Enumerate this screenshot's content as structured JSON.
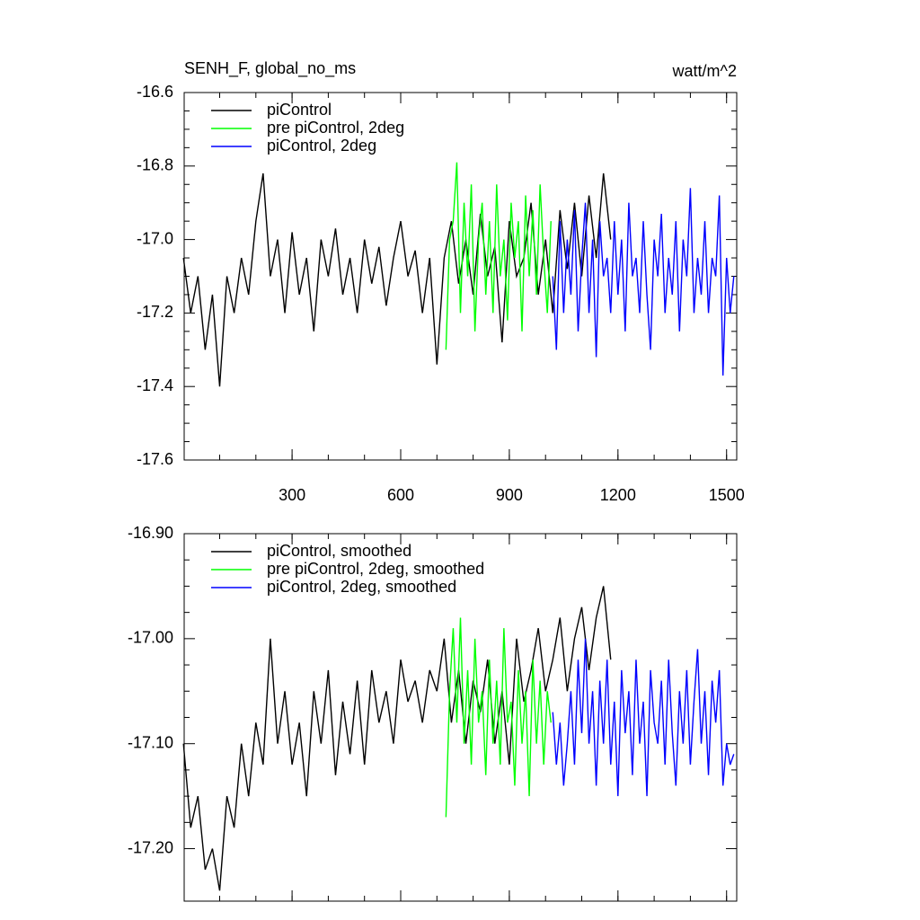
{
  "chart_data": [
    {
      "type": "line",
      "title": "SENH_F, global_no_ms",
      "units_label": "watt/m^2",
      "xlim": [
        2,
        1528
      ],
      "xticks": [
        300,
        600,
        900,
        1200,
        1500
      ],
      "ylim": [
        -17.6,
        -16.6
      ],
      "yticks": [
        -16.6,
        -16.8,
        {
          "value": -17,
          "label": "-17.0"
        },
        -17.2,
        -17.4,
        -17.6
      ],
      "legend": "upper left",
      "series": [
        {
          "name": "piControl",
          "color": "#000000",
          "x": [
            0,
            20,
            40,
            60,
            80,
            100,
            120,
            140,
            160,
            180,
            200,
            220,
            240,
            260,
            280,
            300,
            320,
            340,
            360,
            380,
            400,
            420,
            440,
            460,
            480,
            500,
            520,
            540,
            560,
            580,
            600,
            620,
            640,
            660,
            680,
            700,
            720,
            740,
            760,
            780,
            800,
            820,
            840,
            860,
            880,
            900,
            920,
            940,
            960,
            980,
            1000,
            1020,
            1040,
            1060,
            1080,
            1100,
            1120,
            1140,
            1160,
            1180
          ],
          "values": [
            -17.05,
            -17.2,
            -17.1,
            -17.3,
            -17.15,
            -17.4,
            -17.1,
            -17.2,
            -17.05,
            -17.15,
            -16.95,
            -16.82,
            -17.1,
            -17.0,
            -17.2,
            -16.98,
            -17.15,
            -17.05,
            -17.25,
            -17.0,
            -17.1,
            -16.97,
            -17.15,
            -17.05,
            -17.2,
            -17.0,
            -17.12,
            -17.02,
            -17.18,
            -17.05,
            -16.95,
            -17.1,
            -17.03,
            -17.2,
            -17.05,
            -17.34,
            -17.05,
            -16.95,
            -17.12,
            -17.0,
            -17.15,
            -16.93,
            -17.1,
            -17.02,
            -17.28,
            -16.95,
            -17.1,
            -17.05,
            -16.9,
            -17.15,
            -17.0,
            -17.2,
            -16.92,
            -17.08,
            -16.9,
            -17.1,
            -16.88,
            -17.05,
            -16.82,
            -17.0
          ]
        },
        {
          "name": "pre piControl, 2deg",
          "color": "#00ff00",
          "x": [
            725,
            735,
            745,
            755,
            765,
            775,
            785,
            795,
            805,
            815,
            825,
            835,
            845,
            855,
            865,
            875,
            885,
            895,
            905,
            915,
            925,
            935,
            945,
            955,
            965,
            975,
            985,
            995,
            1005,
            1015
          ],
          "values": [
            -17.3,
            -17.0,
            -16.95,
            -16.79,
            -17.2,
            -16.9,
            -17.1,
            -16.85,
            -17.25,
            -17.0,
            -16.9,
            -17.15,
            -16.95,
            -17.2,
            -16.85,
            -17.1,
            -17.0,
            -17.22,
            -16.9,
            -17.05,
            -16.95,
            -17.25,
            -16.88,
            -17.1,
            -16.92,
            -17.15,
            -16.85,
            -17.05,
            -17.2,
            -16.95
          ]
        },
        {
          "name": "piControl, 2deg",
          "color": "#0000ff",
          "x": [
            1020,
            1030,
            1040,
            1050,
            1060,
            1070,
            1080,
            1090,
            1100,
            1110,
            1120,
            1130,
            1140,
            1150,
            1160,
            1170,
            1180,
            1190,
            1200,
            1210,
            1220,
            1230,
            1240,
            1250,
            1260,
            1270,
            1280,
            1290,
            1300,
            1310,
            1320,
            1330,
            1340,
            1350,
            1360,
            1370,
            1380,
            1390,
            1400,
            1410,
            1420,
            1430,
            1440,
            1450,
            1460,
            1470,
            1480,
            1490,
            1500,
            1510,
            1520
          ],
          "values": [
            -17.1,
            -17.3,
            -16.95,
            -17.2,
            -17.0,
            -17.15,
            -16.92,
            -17.25,
            -17.05,
            -16.9,
            -17.2,
            -17.0,
            -17.32,
            -16.95,
            -17.1,
            -17.05,
            -17.2,
            -16.95,
            -17.15,
            -17.0,
            -17.25,
            -16.9,
            -17.1,
            -17.05,
            -17.2,
            -16.95,
            -17.15,
            -17.3,
            -17.0,
            -17.1,
            -16.93,
            -17.2,
            -17.05,
            -17.15,
            -16.95,
            -17.25,
            -17.0,
            -17.1,
            -16.86,
            -17.2,
            -17.05,
            -17.15,
            -16.95,
            -17.2,
            -17.05,
            -17.1,
            -16.88,
            -17.37,
            -17.05,
            -17.2,
            -17.1
          ]
        }
      ]
    },
    {
      "type": "line",
      "xlim": [
        2,
        1528
      ],
      "ylim": [
        -17.25,
        -16.9
      ],
      "yticks": [
        {
          "value": -16.9,
          "label": "-16.90"
        },
        {
          "value": -17,
          "label": "-17.00"
        },
        {
          "value": -17.1,
          "label": "-17.10"
        },
        {
          "value": -17.2,
          "label": "-17.20"
        }
      ],
      "legend": "upper left",
      "series": [
        {
          "name": "piControl, smoothed",
          "color": "#000000",
          "x": [
            0,
            20,
            40,
            60,
            80,
            100,
            120,
            140,
            160,
            180,
            200,
            220,
            240,
            260,
            280,
            300,
            320,
            340,
            360,
            380,
            400,
            420,
            440,
            460,
            480,
            500,
            520,
            540,
            560,
            580,
            600,
            620,
            640,
            660,
            680,
            700,
            720,
            740,
            760,
            780,
            800,
            820,
            840,
            860,
            880,
            900,
            920,
            940,
            960,
            980,
            1000,
            1020,
            1040,
            1060,
            1080,
            1100,
            1120,
            1140,
            1160,
            1180
          ],
          "values": [
            -17.1,
            -17.18,
            -17.15,
            -17.22,
            -17.2,
            -17.24,
            -17.15,
            -17.18,
            -17.1,
            -17.15,
            -17.08,
            -17.12,
            -17.0,
            -17.1,
            -17.05,
            -17.12,
            -17.08,
            -17.15,
            -17.05,
            -17.1,
            -17.03,
            -17.13,
            -17.06,
            -17.11,
            -17.04,
            -17.12,
            -17.03,
            -17.08,
            -17.05,
            -17.1,
            -17.02,
            -17.06,
            -17.04,
            -17.08,
            -17.03,
            -17.05,
            -17.0,
            -17.08,
            -17.03,
            -17.1,
            -17.04,
            -17.07,
            -17.02,
            -17.1,
            -17.05,
            -17.12,
            -17.0,
            -17.06,
            -17.03,
            -16.99,
            -17.05,
            -17.02,
            -16.98,
            -17.05,
            -17.0,
            -16.97,
            -17.03,
            -16.98,
            -16.95,
            -17.02
          ]
        },
        {
          "name": "pre piControl, 2deg, smoothed",
          "color": "#00ff00",
          "x": [
            725,
            735,
            745,
            755,
            765,
            775,
            785,
            795,
            805,
            815,
            825,
            835,
            845,
            855,
            865,
            875,
            885,
            895,
            905,
            915,
            925,
            935,
            945,
            955,
            965,
            975,
            985,
            995,
            1005,
            1015
          ],
          "values": [
            -17.17,
            -17.05,
            -16.99,
            -17.08,
            -16.98,
            -17.1,
            -17.03,
            -17.12,
            -17.0,
            -17.08,
            -17.05,
            -17.13,
            -17.02,
            -17.1,
            -17.04,
            -17.12,
            -16.99,
            -17.08,
            -17.06,
            -17.14,
            -17.03,
            -17.1,
            -17.05,
            -17.15,
            -17.02,
            -17.1,
            -17.04,
            -17.12,
            -17.05,
            -17.08
          ]
        },
        {
          "name": "piControl, 2deg, smoothed",
          "color": "#0000ff",
          "x": [
            1020,
            1030,
            1040,
            1050,
            1060,
            1070,
            1080,
            1090,
            1100,
            1110,
            1120,
            1130,
            1140,
            1150,
            1160,
            1170,
            1180,
            1190,
            1200,
            1210,
            1220,
            1230,
            1240,
            1250,
            1260,
            1270,
            1280,
            1290,
            1300,
            1310,
            1320,
            1330,
            1340,
            1350,
            1360,
            1370,
            1380,
            1390,
            1400,
            1410,
            1420,
            1430,
            1440,
            1450,
            1460,
            1470,
            1480,
            1490,
            1500,
            1510,
            1520
          ],
          "values": [
            -17.07,
            -17.12,
            -17.08,
            -17.14,
            -17.1,
            -17.05,
            -17.12,
            -17.02,
            -17.09,
            -17.0,
            -17.1,
            -17.05,
            -17.14,
            -17.04,
            -17.1,
            -17.02,
            -17.12,
            -17.06,
            -17.15,
            -17.03,
            -17.09,
            -17.05,
            -17.13,
            -17.02,
            -17.1,
            -17.06,
            -17.15,
            -17.03,
            -17.08,
            -17.1,
            -17.04,
            -17.12,
            -17.02,
            -17.09,
            -17.14,
            -17.05,
            -17.1,
            -17.03,
            -17.12,
            -17.06,
            -17.01,
            -17.1,
            -17.05,
            -17.13,
            -17.04,
            -17.08,
            -17.03,
            -17.14,
            -17.1,
            -17.12,
            -17.11
          ]
        }
      ]
    }
  ]
}
